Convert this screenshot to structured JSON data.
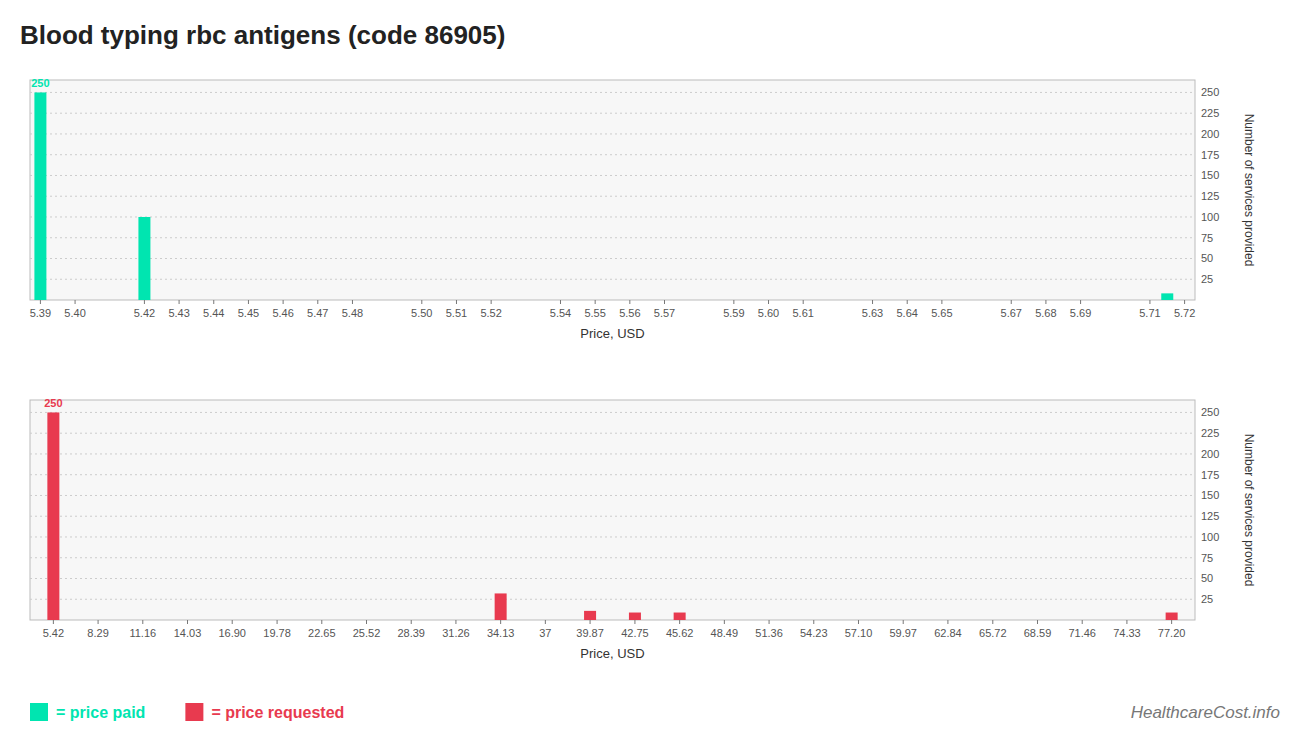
{
  "chart_data": [
    {
      "type": "bar",
      "title": "Blood typing rbc antigens (code 86905)",
      "xlabel": "Price, USD",
      "ylabel": "Number of services provided",
      "x": [
        5.39,
        5.42,
        5.715
      ],
      "series": [
        {
          "name": "= price paid",
          "color": "#00e5b0",
          "values": [
            250,
            100,
            8
          ]
        }
      ],
      "xlim": [
        5.387,
        5.723
      ],
      "xticks": [
        5.39,
        {
          "value": 5.4,
          "label": "5.40"
        },
        5.42,
        5.43,
        5.44,
        5.45,
        5.46,
        5.47,
        5.48,
        {
          "value": 5.5,
          "label": "5.50"
        },
        5.51,
        5.52,
        5.54,
        5.55,
        5.56,
        5.57,
        5.59,
        {
          "value": 5.6,
          "label": "5.60"
        },
        5.61,
        5.63,
        5.64,
        5.65,
        5.67,
        5.68,
        5.69,
        5.71,
        5.72
      ],
      "ylim": [
        0,
        265
      ],
      "yticks": [
        25,
        50,
        75,
        100,
        125,
        150,
        175,
        200,
        225,
        250
      ],
      "grid": true,
      "legend": "bottom",
      "annotations": [
        {
          "text": "250",
          "x": 5.39,
          "y": 250
        }
      ]
    },
    {
      "type": "bar",
      "xlabel": "Price, USD",
      "ylabel": "Number of services provided",
      "x": [
        5.42,
        34.13,
        39.87,
        42.75,
        45.62,
        77.2
      ],
      "series": [
        {
          "name": "= price requested",
          "color": "#e83a4f",
          "values": [
            250,
            32,
            11,
            9,
            9,
            9
          ]
        }
      ],
      "xlim": [
        3.92,
        78.7
      ],
      "xticks": [
        5.42,
        8.29,
        11.16,
        14.03,
        {
          "value": 16.9,
          "label": "16.90"
        },
        19.78,
        22.65,
        25.52,
        28.39,
        31.26,
        34.13,
        37,
        39.87,
        42.75,
        45.62,
        48.49,
        51.36,
        54.23,
        {
          "value": 57.1,
          "label": "57.10"
        },
        59.97,
        62.84,
        65.72,
        68.59,
        71.46,
        74.33,
        {
          "value": 77.2,
          "label": "77.20"
        }
      ],
      "ylim": [
        0,
        265
      ],
      "yticks": [
        25,
        50,
        75,
        100,
        125,
        150,
        175,
        200,
        225,
        250
      ],
      "grid": true,
      "legend": "bottom",
      "annotations": [
        {
          "text": "250",
          "x": 5.42,
          "y": 250
        },
        {
          "text": "HealthcareCost.info"
        }
      ]
    }
  ]
}
